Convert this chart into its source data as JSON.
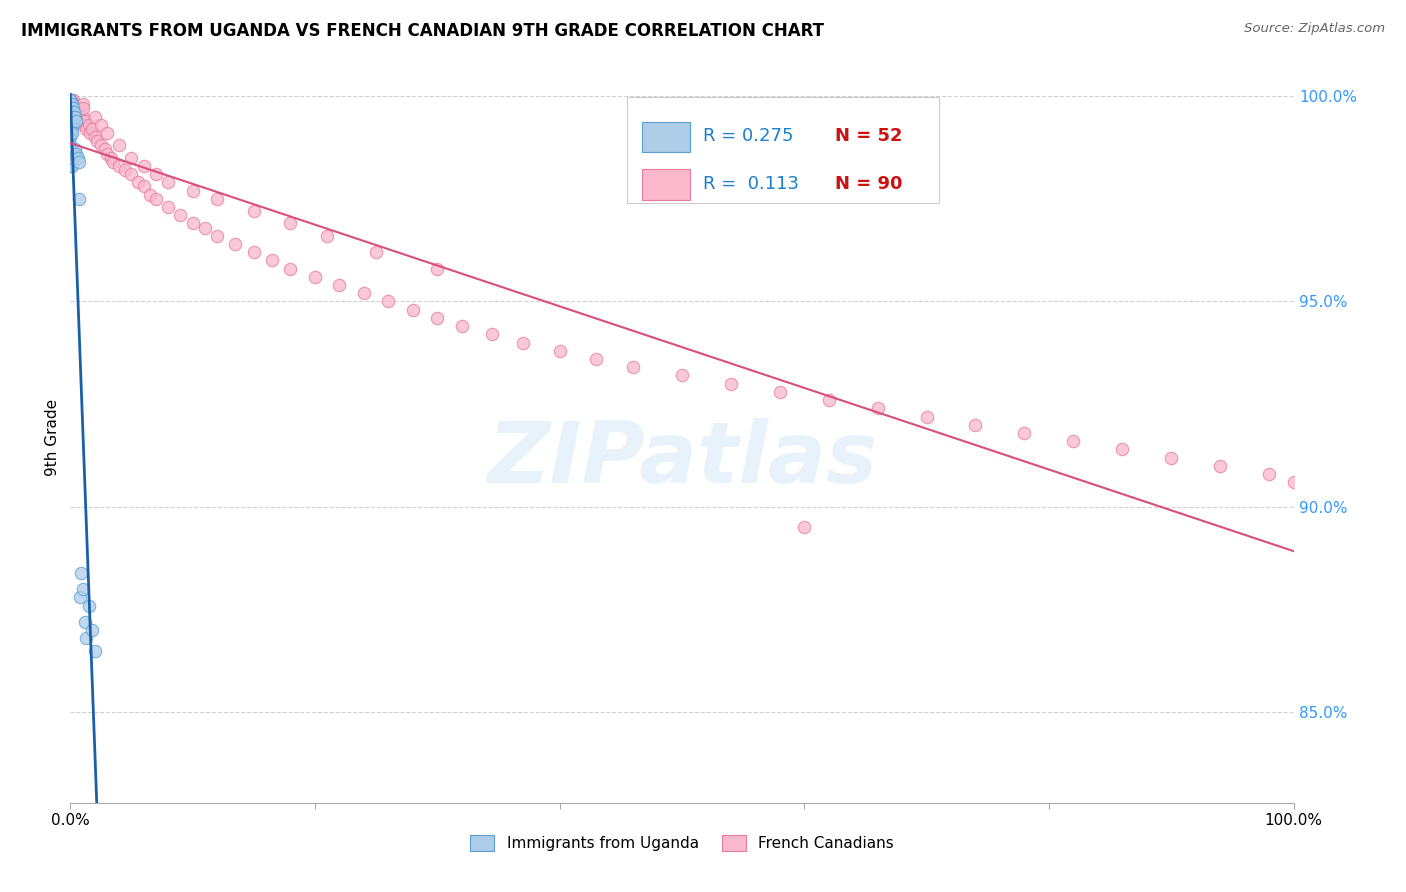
{
  "title": "IMMIGRANTS FROM UGANDA VS FRENCH CANADIAN 9TH GRADE CORRELATION CHART",
  "source": "Source: ZipAtlas.com",
  "ylabel": "9th Grade",
  "legend_r1": "R = 0.275",
  "legend_n1": "N = 52",
  "legend_r2": "R =  0.113",
  "legend_n2": "N = 90",
  "legend_label1": "Immigrants from Uganda",
  "legend_label2": "French Canadians",
  "blue_fill": "#aecde8",
  "blue_edge": "#5a9fd4",
  "pink_fill": "#f9b8cc",
  "pink_edge": "#e87aa0",
  "trend_blue": "#1a5fa8",
  "trend_pink": "#d94f7a",
  "uganda_x": [
    0.0,
    0.0,
    0.0,
    0.0,
    0.0,
    0.0,
    0.0,
    0.0,
    0.0,
    0.0,
    0.0,
    0.0,
    0.0,
    0.0,
    0.0,
    0.0,
    0.0,
    0.0,
    0.0,
    0.0,
    0.001,
    0.001,
    0.001,
    0.001,
    0.001,
    0.001,
    0.001,
    0.001,
    0.001,
    0.002,
    0.002,
    0.002,
    0.002,
    0.002,
    0.003,
    0.003,
    0.003,
    0.004,
    0.004,
    0.005,
    0.005,
    0.006,
    0.007,
    0.007,
    0.008,
    0.009,
    0.01,
    0.012,
    0.013,
    0.015,
    0.018,
    0.02
  ],
  "uganda_y": [
    0.999,
    0.999,
    0.999,
    0.998,
    0.998,
    0.997,
    0.997,
    0.997,
    0.996,
    0.996,
    0.995,
    0.994,
    0.993,
    0.992,
    0.991,
    0.99,
    0.988,
    0.987,
    0.985,
    0.983,
    0.998,
    0.997,
    0.996,
    0.995,
    0.994,
    0.993,
    0.992,
    0.991,
    0.983,
    0.997,
    0.996,
    0.995,
    0.994,
    0.985,
    0.996,
    0.995,
    0.986,
    0.995,
    0.987,
    0.994,
    0.986,
    0.985,
    0.984,
    0.975,
    0.878,
    0.884,
    0.88,
    0.872,
    0.868,
    0.876,
    0.87,
    0.865
  ],
  "french_x": [
    0.001,
    0.001,
    0.002,
    0.002,
    0.002,
    0.003,
    0.003,
    0.004,
    0.005,
    0.005,
    0.006,
    0.006,
    0.007,
    0.007,
    0.008,
    0.009,
    0.01,
    0.011,
    0.012,
    0.013,
    0.015,
    0.016,
    0.018,
    0.02,
    0.022,
    0.025,
    0.028,
    0.03,
    0.033,
    0.035,
    0.04,
    0.045,
    0.05,
    0.055,
    0.06,
    0.065,
    0.07,
    0.08,
    0.09,
    0.1,
    0.11,
    0.12,
    0.135,
    0.15,
    0.165,
    0.18,
    0.2,
    0.22,
    0.24,
    0.26,
    0.28,
    0.3,
    0.32,
    0.345,
    0.37,
    0.4,
    0.43,
    0.46,
    0.5,
    0.54,
    0.58,
    0.62,
    0.66,
    0.7,
    0.74,
    0.78,
    0.82,
    0.86,
    0.9,
    0.94,
    0.98,
    1.0,
    0.01,
    0.01,
    0.02,
    0.025,
    0.03,
    0.04,
    0.05,
    0.06,
    0.07,
    0.08,
    0.1,
    0.12,
    0.15,
    0.18,
    0.21,
    0.25,
    0.3,
    0.6
  ],
  "french_y": [
    0.999,
    0.998,
    0.999,
    0.998,
    0.997,
    0.998,
    0.997,
    0.996,
    0.997,
    0.996,
    0.997,
    0.995,
    0.996,
    0.994,
    0.995,
    0.994,
    0.995,
    0.993,
    0.994,
    0.992,
    0.993,
    0.991,
    0.992,
    0.99,
    0.989,
    0.988,
    0.987,
    0.986,
    0.985,
    0.984,
    0.983,
    0.982,
    0.981,
    0.979,
    0.978,
    0.976,
    0.975,
    0.973,
    0.971,
    0.969,
    0.968,
    0.966,
    0.964,
    0.962,
    0.96,
    0.958,
    0.956,
    0.954,
    0.952,
    0.95,
    0.948,
    0.946,
    0.944,
    0.942,
    0.94,
    0.938,
    0.936,
    0.934,
    0.932,
    0.93,
    0.928,
    0.926,
    0.924,
    0.922,
    0.92,
    0.918,
    0.916,
    0.914,
    0.912,
    0.91,
    0.908,
    0.906,
    0.998,
    0.997,
    0.995,
    0.993,
    0.991,
    0.988,
    0.985,
    0.983,
    0.981,
    0.979,
    0.977,
    0.975,
    0.972,
    0.969,
    0.966,
    0.962,
    0.958,
    0.895
  ],
  "xlim": [
    0.0,
    1.0
  ],
  "ylim": [
    0.828,
    1.006
  ],
  "yticks": [
    0.85,
    0.9,
    0.95,
    1.0
  ],
  "ytick_labels": [
    "85.0%",
    "90.0%",
    "95.0%",
    "100.0%"
  ],
  "xtick_labels": [
    "0.0%",
    "100.0%"
  ]
}
